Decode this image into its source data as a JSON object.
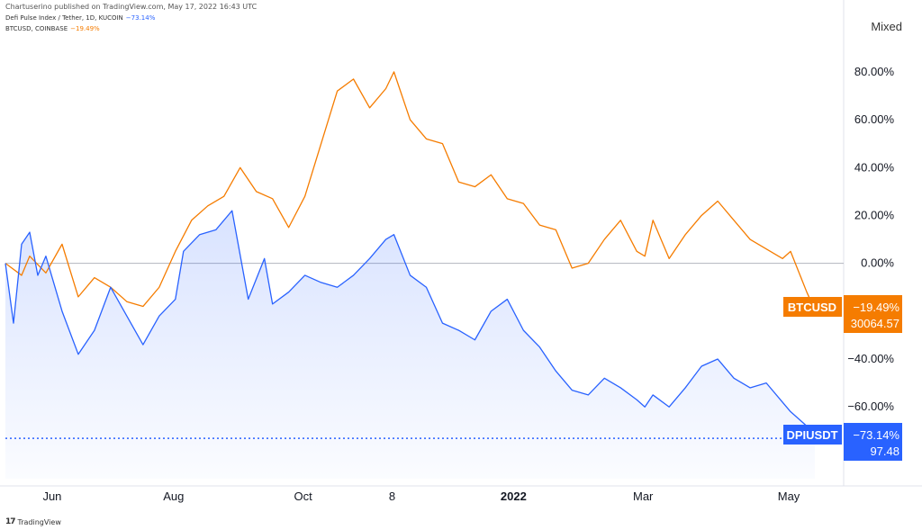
{
  "header": {
    "published": "Chartuserino published on TradingView.com, May 17, 2022 16:43 UTC"
  },
  "legend": [
    {
      "text": "Defi Pulse Index / Tether, 1D, KUCOIN",
      "pct": "−73.14%",
      "color": "#2962ff"
    },
    {
      "text": "BTCUSD, COINBASE",
      "pct": "−19.49%",
      "color": "#f57c00"
    }
  ],
  "scale_mode": "Mixed",
  "footer": {
    "logo": "17",
    "brand": "TradingView"
  },
  "chart_data": {
    "type": "line",
    "y_axis_unit": "%",
    "y_ticks": [
      "80.00%",
      "60.00%",
      "40.00%",
      "20.00%",
      "0.00%",
      "−40.00%",
      "−60.00%"
    ],
    "ylim": [
      -90,
      95
    ],
    "x_ticks": [
      {
        "label": "Jun",
        "t": 0.06,
        "bold": false
      },
      {
        "label": "Aug",
        "t": 0.21,
        "bold": false
      },
      {
        "label": "Oct",
        "t": 0.37,
        "bold": false
      },
      {
        "label": "8",
        "t": 0.48,
        "bold": false
      },
      {
        "label": "2022",
        "t": 0.63,
        "bold": true
      },
      {
        "label": "Mar",
        "t": 0.79,
        "bold": false
      },
      {
        "label": "May",
        "t": 0.97,
        "bold": false
      }
    ],
    "zero_line": 0,
    "series": [
      {
        "name": "BTCUSD",
        "color": "#f57c00",
        "last_pct": "−19.49%",
        "last_price": "30064.57",
        "points": [
          [
            0,
            0
          ],
          [
            0.02,
            -5
          ],
          [
            0.03,
            3
          ],
          [
            0.05,
            -4
          ],
          [
            0.07,
            8
          ],
          [
            0.09,
            -14
          ],
          [
            0.11,
            -6
          ],
          [
            0.13,
            -10
          ],
          [
            0.15,
            -16
          ],
          [
            0.17,
            -18
          ],
          [
            0.19,
            -10
          ],
          [
            0.21,
            5
          ],
          [
            0.23,
            18
          ],
          [
            0.25,
            24
          ],
          [
            0.27,
            28
          ],
          [
            0.29,
            40
          ],
          [
            0.31,
            30
          ],
          [
            0.33,
            27
          ],
          [
            0.35,
            15
          ],
          [
            0.37,
            28
          ],
          [
            0.39,
            50
          ],
          [
            0.41,
            72
          ],
          [
            0.43,
            77
          ],
          [
            0.45,
            65
          ],
          [
            0.47,
            73
          ],
          [
            0.48,
            80
          ],
          [
            0.5,
            60
          ],
          [
            0.52,
            52
          ],
          [
            0.54,
            50
          ],
          [
            0.56,
            34
          ],
          [
            0.58,
            32
          ],
          [
            0.6,
            37
          ],
          [
            0.62,
            27
          ],
          [
            0.64,
            25
          ],
          [
            0.66,
            16
          ],
          [
            0.68,
            14
          ],
          [
            0.7,
            -2
          ],
          [
            0.72,
            0
          ],
          [
            0.74,
            10
          ],
          [
            0.76,
            18
          ],
          [
            0.78,
            5
          ],
          [
            0.79,
            3
          ],
          [
            0.8,
            18
          ],
          [
            0.82,
            2
          ],
          [
            0.84,
            12
          ],
          [
            0.86,
            20
          ],
          [
            0.88,
            26
          ],
          [
            0.9,
            18
          ],
          [
            0.92,
            10
          ],
          [
            0.94,
            6
          ],
          [
            0.96,
            2
          ],
          [
            0.97,
            5
          ],
          [
            0.99,
            -12
          ],
          [
            1.0,
            -19.49
          ]
        ]
      },
      {
        "name": "DPIUSDT",
        "color": "#2962ff",
        "last_pct": "−73.14%",
        "last_price": "97.48",
        "points": [
          [
            0,
            0
          ],
          [
            0.01,
            -25
          ],
          [
            0.02,
            8
          ],
          [
            0.03,
            13
          ],
          [
            0.04,
            -5
          ],
          [
            0.05,
            3
          ],
          [
            0.07,
            -20
          ],
          [
            0.09,
            -38
          ],
          [
            0.11,
            -28
          ],
          [
            0.13,
            -10
          ],
          [
            0.15,
            -22
          ],
          [
            0.17,
            -34
          ],
          [
            0.19,
            -22
          ],
          [
            0.21,
            -15
          ],
          [
            0.22,
            5
          ],
          [
            0.24,
            12
          ],
          [
            0.26,
            14
          ],
          [
            0.28,
            22
          ],
          [
            0.3,
            -15
          ],
          [
            0.32,
            2
          ],
          [
            0.33,
            -17
          ],
          [
            0.35,
            -12
          ],
          [
            0.37,
            -5
          ],
          [
            0.39,
            -8
          ],
          [
            0.41,
            -10
          ],
          [
            0.43,
            -5
          ],
          [
            0.45,
            2
          ],
          [
            0.47,
            10
          ],
          [
            0.48,
            12
          ],
          [
            0.5,
            -5
          ],
          [
            0.52,
            -10
          ],
          [
            0.54,
            -25
          ],
          [
            0.56,
            -28
          ],
          [
            0.58,
            -32
          ],
          [
            0.6,
            -20
          ],
          [
            0.62,
            -15
          ],
          [
            0.64,
            -28
          ],
          [
            0.66,
            -35
          ],
          [
            0.68,
            -45
          ],
          [
            0.7,
            -53
          ],
          [
            0.72,
            -55
          ],
          [
            0.74,
            -48
          ],
          [
            0.76,
            -52
          ],
          [
            0.78,
            -57
          ],
          [
            0.79,
            -60
          ],
          [
            0.8,
            -55
          ],
          [
            0.82,
            -60
          ],
          [
            0.84,
            -52
          ],
          [
            0.86,
            -43
          ],
          [
            0.88,
            -40
          ],
          [
            0.9,
            -48
          ],
          [
            0.92,
            -52
          ],
          [
            0.94,
            -50
          ],
          [
            0.96,
            -58
          ],
          [
            0.97,
            -62
          ],
          [
            0.99,
            -68
          ],
          [
            1.0,
            -73.14
          ]
        ]
      }
    ]
  }
}
